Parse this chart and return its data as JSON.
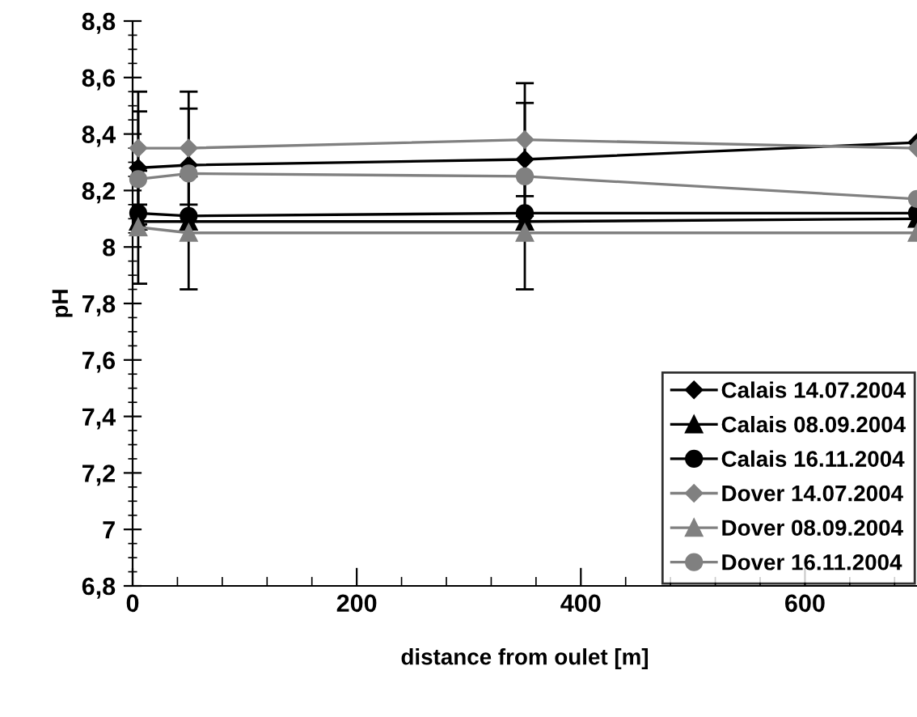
{
  "chart_data": {
    "type": "line",
    "xlabel": "distance from oulet [m]",
    "ylabel": "pH",
    "x": [
      5,
      50,
      350,
      700
    ],
    "xlim": [
      0,
      700
    ],
    "xticks": [
      0,
      200,
      400,
      600
    ],
    "ylim": [
      6.8,
      8.8
    ],
    "yticks": [
      {
        "value": 6.8,
        "label": "6,8"
      },
      {
        "value": 7,
        "label": "7"
      },
      {
        "value": 7.2,
        "label": "7,2"
      },
      {
        "value": 7.4,
        "label": "7,4"
      },
      {
        "value": 7.6,
        "label": "7,6"
      },
      {
        "value": 7.8,
        "label": "7,8"
      },
      {
        "value": 8,
        "label": "8"
      },
      {
        "value": 8.2,
        "label": "8,2"
      },
      {
        "value": 8.4,
        "label": "8,4"
      },
      {
        "value": 8.6,
        "label": "8,6"
      },
      {
        "value": 8.8,
        "label": "8,8"
      }
    ],
    "grid": false,
    "legend": "bottom right",
    "series": [
      {
        "name": "Calais 14.07.2004",
        "color": "#000000",
        "marker": "diamond",
        "values": [
          8.28,
          8.29,
          8.31,
          8.37
        ],
        "errors": [
          0.2,
          0.2,
          0.2,
          null
        ]
      },
      {
        "name": "Calais 08.09.2004",
        "color": "#000000",
        "marker": "triangle",
        "values": [
          8.09,
          8.09,
          8.09,
          8.1
        ]
      },
      {
        "name": "Calais 16.11.2004",
        "color": "#000000",
        "marker": "circle",
        "values": [
          8.12,
          8.11,
          8.12,
          8.12
        ]
      },
      {
        "name": "Dover 14.07.2004",
        "color": "#808080",
        "marker": "diamond",
        "values": [
          8.35,
          8.35,
          8.38,
          8.35
        ],
        "errors": [
          0.2,
          0.2,
          0.2,
          null
        ]
      },
      {
        "name": "Dover 08.09.2004",
        "color": "#808080",
        "marker": "triangle",
        "values": [
          8.07,
          8.05,
          8.05,
          8.05
        ],
        "errors": [
          0.2,
          0.2,
          0.2,
          null
        ]
      },
      {
        "name": "Dover 16.11.2004",
        "color": "#808080",
        "marker": "circle",
        "values": [
          8.24,
          8.26,
          8.25,
          8.17
        ]
      }
    ]
  }
}
